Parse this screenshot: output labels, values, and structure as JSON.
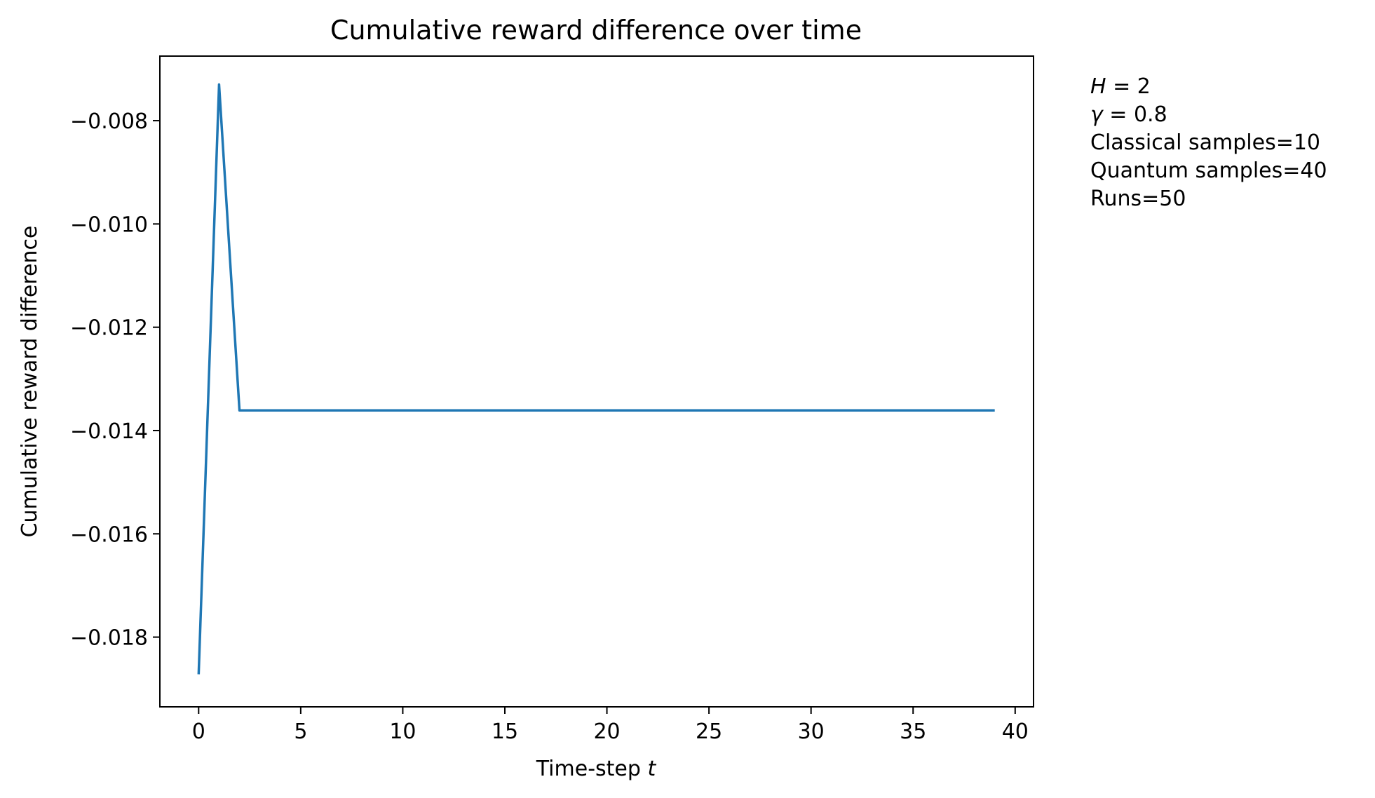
{
  "chart_data": {
    "type": "line",
    "title": "Cumulative reward difference over time",
    "xlabel_main": "Time-step ",
    "xlabel_var": "t",
    "ylabel": "Cumulative reward difference",
    "xlim": [
      -1.9,
      40.9
    ],
    "ylim": [
      -0.01935,
      -0.00675
    ],
    "xticks": [
      0,
      5,
      10,
      15,
      20,
      25,
      30,
      35,
      40
    ],
    "yticks": [
      -0.018,
      -0.016,
      -0.014,
      -0.012,
      -0.01,
      -0.008
    ],
    "ytick_labels": [
      "−0.018",
      "−0.016",
      "−0.014",
      "−0.012",
      "−0.010",
      "−0.008"
    ],
    "series": [
      {
        "color": "#1f77b4",
        "x": [
          0,
          1,
          2,
          3,
          4,
          5,
          6,
          7,
          8,
          9,
          10,
          11,
          12,
          13,
          14,
          15,
          16,
          17,
          18,
          19,
          20,
          21,
          22,
          23,
          24,
          25,
          26,
          27,
          28,
          29,
          30,
          31,
          32,
          33,
          34,
          35,
          36,
          37,
          38,
          39
        ],
        "y": [
          -0.01872,
          -0.0073,
          -0.01361,
          -0.01361,
          -0.01361,
          -0.01361,
          -0.01361,
          -0.01361,
          -0.01361,
          -0.01361,
          -0.01361,
          -0.01361,
          -0.01361,
          -0.01361,
          -0.01361,
          -0.01361,
          -0.01361,
          -0.01361,
          -0.01361,
          -0.01361,
          -0.01361,
          -0.01361,
          -0.01361,
          -0.01361,
          -0.01361,
          -0.01361,
          -0.01361,
          -0.01361,
          -0.01361,
          -0.01361,
          -0.01361,
          -0.01361,
          -0.01361,
          -0.01361,
          -0.01361,
          -0.01361,
          -0.01361,
          -0.01361,
          -0.01361,
          -0.01361
        ]
      }
    ],
    "annotation": {
      "h_var": "H",
      "h_value": " = 2",
      "gamma_var": "γ",
      "gamma_value": " = 0.8",
      "classical": "Classical samples=10",
      "quantum": "Quantum samples=40",
      "runs": "Runs=50"
    }
  }
}
